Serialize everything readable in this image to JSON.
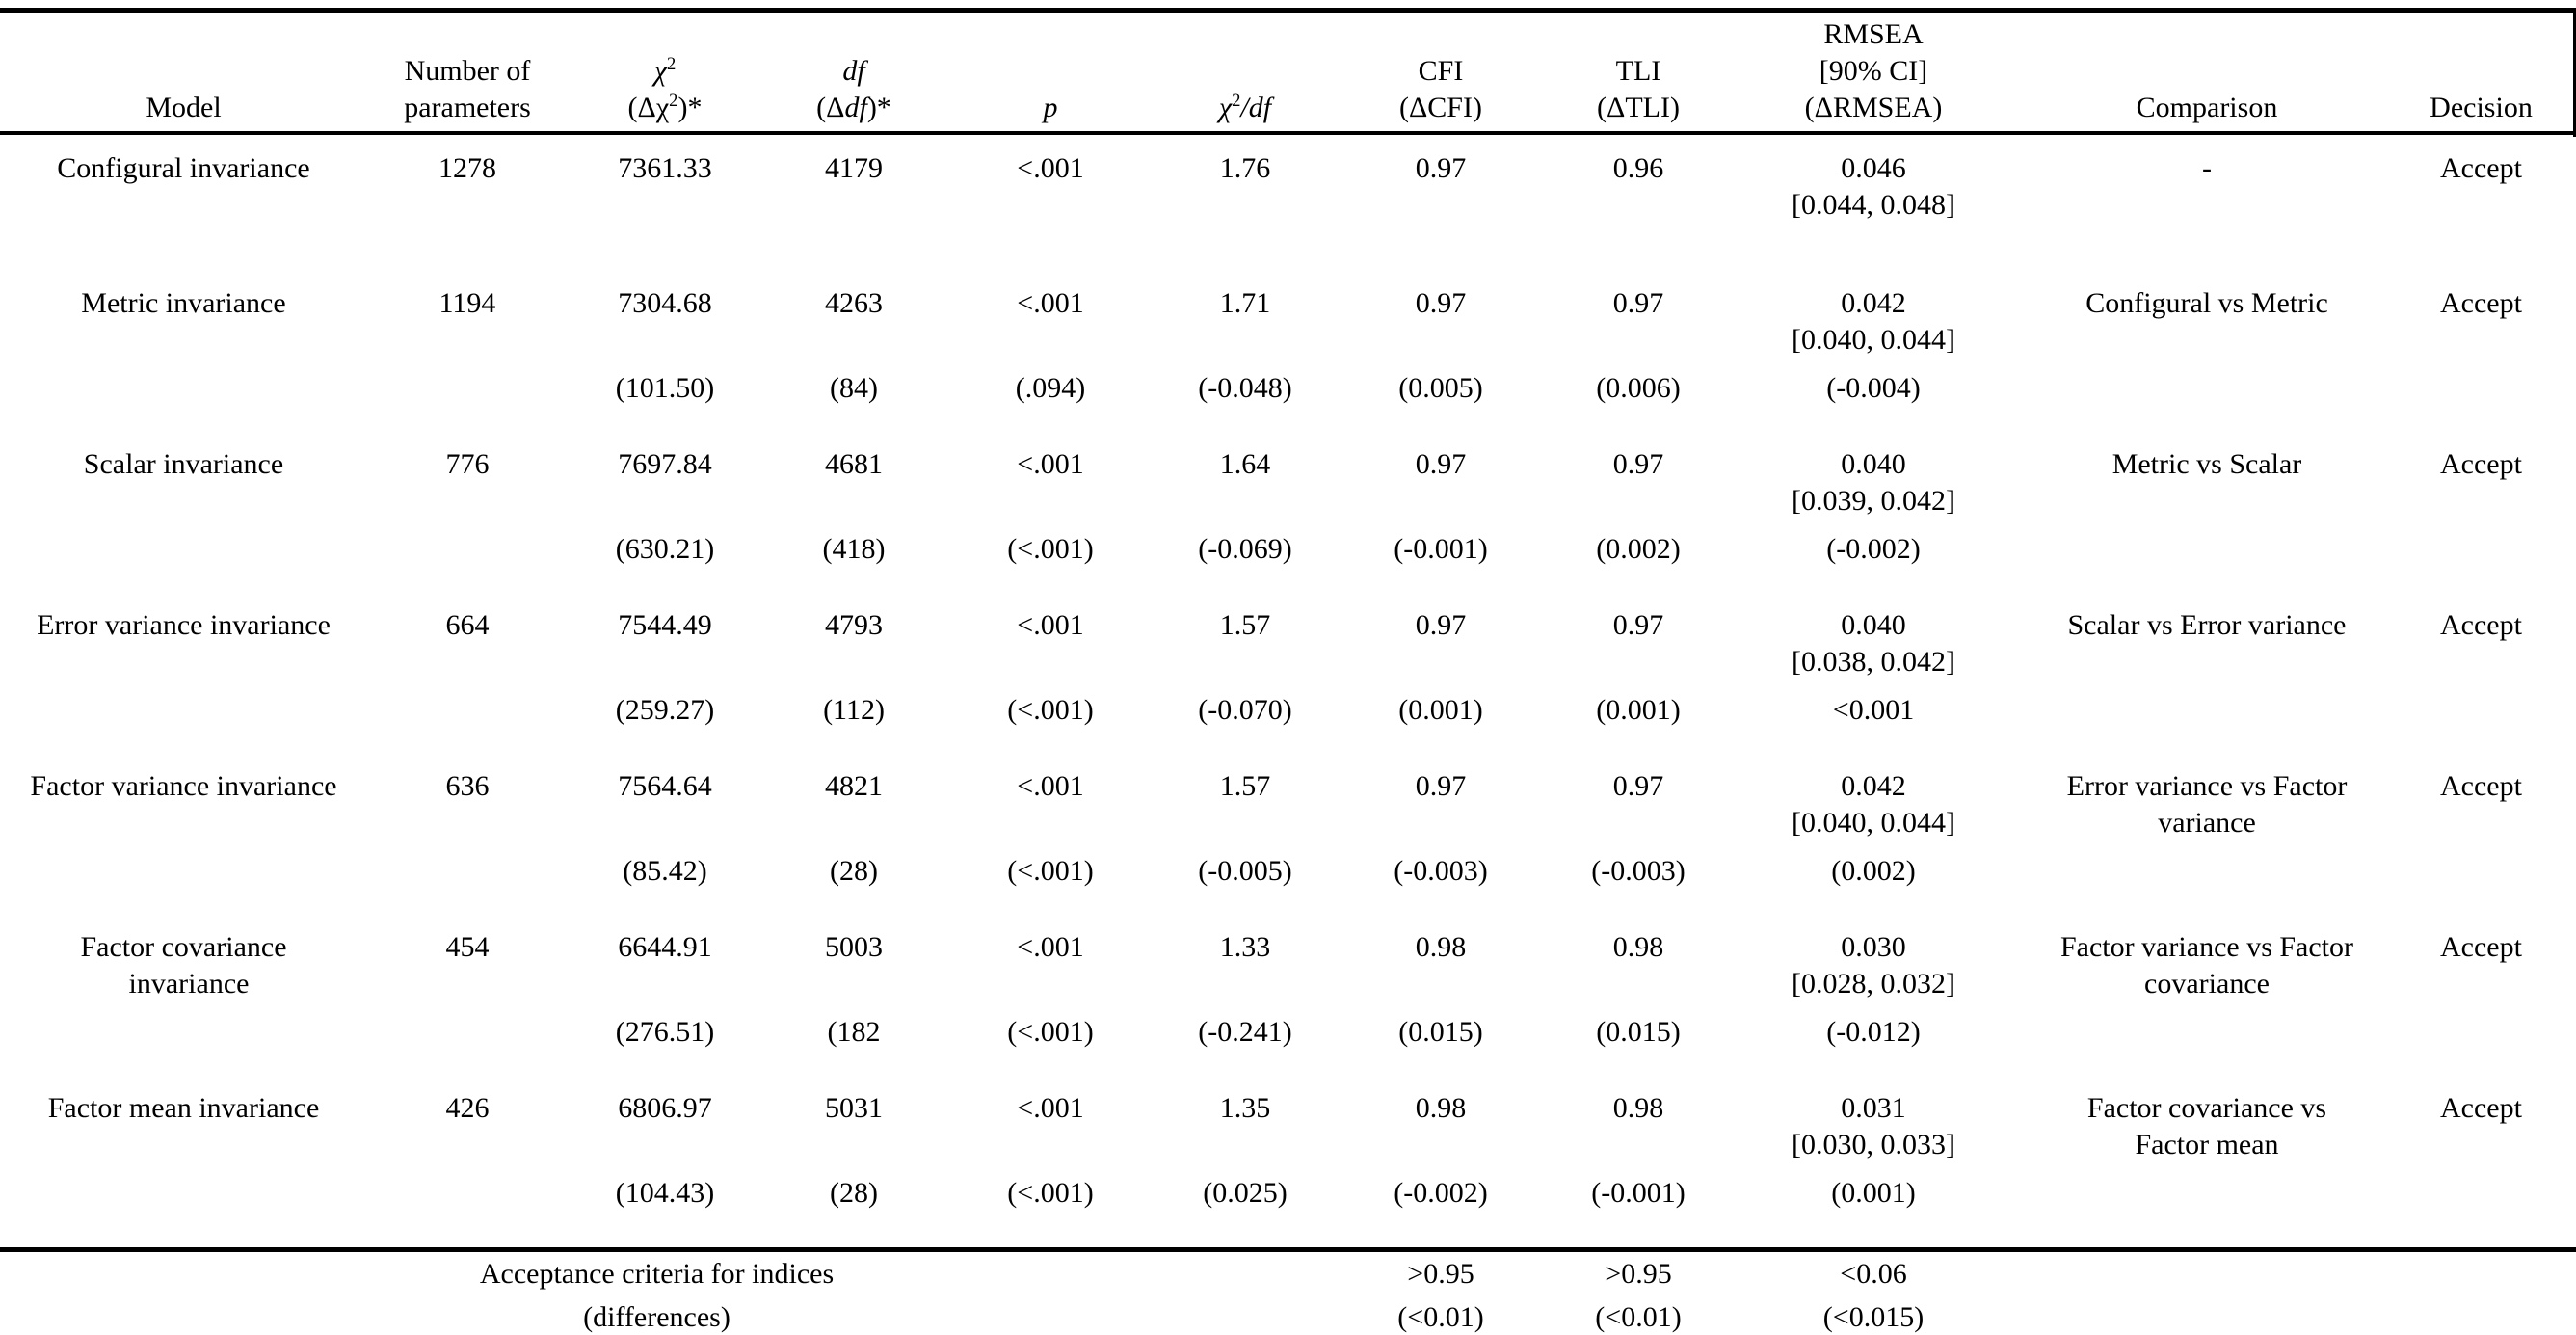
{
  "header": {
    "model": "Model",
    "params_line1": "Number of",
    "params_line2": "parameters",
    "chi": "χ",
    "chi_sup": "2",
    "chi_delta_open": "(Δχ",
    "chi_delta_sup": "2",
    "chi_delta_close": ")*",
    "df": "df",
    "df_delta_open": "(Δ",
    "df_delta_it": "df",
    "df_delta_close": ")*",
    "p": "p",
    "ratio_chi": "χ",
    "ratio_sup": "2",
    "ratio_slash": "/",
    "ratio_df": "df",
    "cfi_line1": "CFI",
    "cfi_line2": "(ΔCFI)",
    "tli_line1": "TLI",
    "tli_line2": "(ΔTLI)",
    "rmsea_line1": "RMSEA",
    "rmsea_line2": "[90% CI]",
    "rmsea_line3": "(ΔRMSEA)",
    "comparison": "Comparison",
    "decision": "Decision"
  },
  "table": {
    "blocks": [
      {
        "main": {
          "model": "Configural invariance",
          "params": "1278",
          "chisq": "7361.33",
          "df": "4179",
          "p": "<.001",
          "ratio": "1.76",
          "cfi": "0.97",
          "tli": "0.96",
          "rmsea": "0.046",
          "rmsea_ci": "[0.044, 0.048]",
          "comparison": "-",
          "decision": "Accept"
        },
        "delta": null
      },
      {
        "main": {
          "model": "Metric invariance",
          "params": "1194",
          "chisq": "7304.68",
          "df": "4263",
          "p": "<.001",
          "ratio": "1.71",
          "cfi": "0.97",
          "tli": "0.97",
          "rmsea": "0.042",
          "rmsea_ci": "[0.040, 0.044]",
          "comparison": "Configural vs Metric",
          "decision": "Accept"
        },
        "delta": {
          "chisq": "(101.50)",
          "df": "(84)",
          "p": "(.094)",
          "ratio": "(-0.048)",
          "cfi": "(0.005)",
          "tli": "(0.006)",
          "rmsea": "(-0.004)"
        }
      },
      {
        "main": {
          "model": "Scalar invariance",
          "params": "776",
          "chisq": "7697.84",
          "df": "4681",
          "p": "<.001",
          "ratio": "1.64",
          "cfi": "0.97",
          "tli": "0.97",
          "rmsea": "0.040",
          "rmsea_ci": "[0.039, 0.042]",
          "comparison": "Metric vs Scalar",
          "decision": "Accept"
        },
        "delta": {
          "chisq": "(630.21)",
          "df": "(418)",
          "p": "(<.001)",
          "ratio": "(-0.069)",
          "cfi": "(-0.001)",
          "tli": "(0.002)",
          "rmsea": "(-0.002)"
        }
      },
      {
        "main": {
          "model": "Error variance invariance",
          "params": "664",
          "chisq": "7544.49",
          "df": "4793",
          "p": "<.001",
          "ratio": "1.57",
          "cfi": "0.97",
          "tli": "0.97",
          "rmsea": "0.040",
          "rmsea_ci": "[0.038, 0.042]",
          "comparison": "Scalar vs Error variance",
          "decision": "Accept"
        },
        "delta": {
          "chisq": "(259.27)",
          "df": "(112)",
          "p": "(<.001)",
          "ratio": "(-0.070)",
          "cfi": "(0.001)",
          "tli": "(0.001)",
          "rmsea": "<0.001"
        }
      },
      {
        "main": {
          "model": "Factor variance invariance",
          "params": "636",
          "chisq": "7564.64",
          "df": "4821",
          "p": "<.001",
          "ratio": "1.57",
          "cfi": "0.97",
          "tli": "0.97",
          "rmsea": "0.042",
          "rmsea_ci": "[0.040, 0.044]",
          "comparison": "Error variance vs Factor\nvariance",
          "decision": "Accept"
        },
        "delta": {
          "chisq": "(85.42)",
          "df": "(28)",
          "p": "(<.001)",
          "ratio": "(-0.005)",
          "cfi": "(-0.003)",
          "tli": "(-0.003)",
          "rmsea": "(0.002)"
        }
      },
      {
        "main": {
          "model": "Factor covariance\ninvariance",
          "params": "454",
          "chisq": "6644.91",
          "df": "5003",
          "p": "<.001",
          "ratio": "1.33",
          "cfi": "0.98",
          "tli": "0.98",
          "rmsea": "0.030",
          "rmsea_ci": "[0.028, 0.032]",
          "comparison": "Factor variance vs Factor\ncovariance",
          "decision": "Accept"
        },
        "delta": {
          "chisq": "(276.51)",
          "df": "(182",
          "p": "(<.001)",
          "ratio": "(-0.241)",
          "cfi": "(0.015)",
          "tli": "(0.015)",
          "rmsea": "(-0.012)"
        }
      },
      {
        "main": {
          "model": "Factor mean invariance",
          "params": "426",
          "chisq": "6806.97",
          "df": "5031",
          "p": "<.001",
          "ratio": "1.35",
          "cfi": "0.98",
          "tli": "0.98",
          "rmsea": "0.031",
          "rmsea_ci": "[0.030, 0.033]",
          "comparison": "Factor covariance vs\nFactor mean",
          "decision": "Accept"
        },
        "delta": {
          "chisq": "(104.43)",
          "df": "(28)",
          "p": "(<.001)",
          "ratio": "(0.025)",
          "cfi": "(-0.002)",
          "tli": "(-0.001)",
          "rmsea": "(0.001)"
        }
      }
    ]
  },
  "footer": {
    "line1": {
      "label": "Acceptance criteria for indices",
      "cfi": ">0.95",
      "tli": ">0.95",
      "rmsea": "<0.06"
    },
    "line2": {
      "label": "(differences)",
      "cfi": "(<0.01)",
      "tli": "(<0.01)",
      "rmsea": "(<0.015)"
    }
  }
}
